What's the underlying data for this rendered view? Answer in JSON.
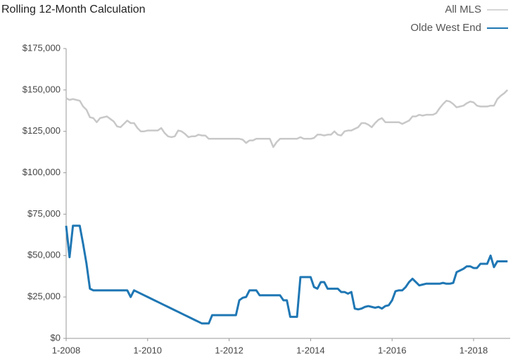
{
  "chart_data": {
    "type": "line",
    "title": "Rolling 12-Month Calculation",
    "categories": [
      "1-2008",
      null,
      null,
      null,
      null,
      null,
      null,
      null,
      null,
      null,
      null,
      null,
      null,
      null,
      null,
      null,
      null,
      null,
      null,
      null,
      null,
      null,
      null,
      null,
      "1-2010",
      null,
      null,
      null,
      null,
      null,
      null,
      null,
      null,
      null,
      null,
      null,
      null,
      null,
      null,
      null,
      null,
      null,
      null,
      null,
      null,
      null,
      null,
      null,
      "1-2012",
      null,
      null,
      null,
      null,
      null,
      null,
      null,
      null,
      null,
      null,
      null,
      null,
      null,
      null,
      null,
      null,
      null,
      null,
      null,
      null,
      null,
      null,
      null,
      "1-2014",
      null,
      null,
      null,
      null,
      null,
      null,
      null,
      null,
      null,
      null,
      null,
      null,
      null,
      null,
      null,
      null,
      null,
      null,
      null,
      null,
      null,
      null,
      null,
      "1-2016",
      null,
      null,
      null,
      null,
      null,
      null,
      null,
      null,
      null,
      null,
      null,
      null,
      null,
      null,
      null,
      null,
      null,
      null,
      null,
      null,
      null,
      null,
      null,
      "1-2018",
      null,
      null,
      null,
      null,
      null,
      null,
      null,
      null,
      null,
      null
    ],
    "series": [
      {
        "name": "All MLS",
        "color": "#c8c8c8",
        "values": [
          145000,
          144000,
          144500,
          144000,
          143500,
          140000,
          138000,
          133500,
          133000,
          130500,
          133000,
          133500,
          134000,
          132500,
          131000,
          128000,
          127500,
          129500,
          131500,
          130000,
          130000,
          127000,
          125000,
          125000,
          125500,
          125500,
          125500,
          125500,
          127000,
          124000,
          122000,
          121500,
          122000,
          125500,
          125000,
          123500,
          121500,
          122000,
          122000,
          123000,
          122500,
          122500,
          120500,
          120500,
          120500,
          120500,
          120500,
          120500,
          120500,
          120500,
          120500,
          120500,
          120000,
          118000,
          119500,
          119500,
          120500,
          120500,
          120500,
          120500,
          120500,
          115500,
          118500,
          120500,
          120500,
          120500,
          120500,
          120500,
          120500,
          121500,
          120500,
          120500,
          120500,
          121000,
          123000,
          123000,
          122500,
          123000,
          123000,
          125000,
          123000,
          122500,
          125000,
          125500,
          125500,
          126500,
          127500,
          130000,
          130000,
          129000,
          127500,
          130000,
          132000,
          133000,
          130500,
          130500,
          130500,
          130500,
          130500,
          129500,
          130500,
          131500,
          134000,
          134000,
          135000,
          134500,
          135000,
          135000,
          135000,
          136000,
          139000,
          141500,
          143500,
          143000,
          141500,
          139500,
          140000,
          140500,
          142000,
          143000,
          142500,
          140500,
          140000,
          140000,
          140000,
          140500,
          140500,
          144500,
          146500,
          148000,
          150000
        ]
      },
      {
        "name": "Olde West End",
        "color": "#1f77b4",
        "values": [
          68000,
          49000,
          68000,
          68000,
          68000,
          57000,
          45000,
          30000,
          29000,
          29000,
          29000,
          29000,
          29000,
          29000,
          29000,
          29000,
          29000,
          29000,
          29000,
          25000,
          29000,
          28000,
          27000,
          26000,
          25000,
          24000,
          23000,
          22000,
          21000,
          20000,
          19000,
          18000,
          17000,
          16000,
          15000,
          14000,
          13000,
          12000,
          11000,
          10000,
          9000,
          9000,
          9000,
          14000,
          14000,
          14000,
          14000,
          14000,
          14000,
          14000,
          14000,
          23000,
          24500,
          25000,
          29000,
          29000,
          29000,
          26000,
          26000,
          26000,
          26000,
          26000,
          26000,
          26000,
          23000,
          23000,
          13000,
          13000,
          13000,
          37000,
          37000,
          37000,
          37000,
          31000,
          30000,
          34000,
          34000,
          30000,
          30000,
          30000,
          30000,
          28000,
          28000,
          27000,
          28000,
          18000,
          17500,
          18000,
          19000,
          19500,
          19000,
          18500,
          19000,
          18000,
          19500,
          20000,
          23000,
          28500,
          29000,
          29000,
          31000,
          34000,
          36000,
          34000,
          32000,
          32500,
          33000,
          33000,
          33000,
          33000,
          33000,
          33500,
          33000,
          33000,
          33500,
          40000,
          41000,
          42000,
          43500,
          43500,
          42500,
          42500,
          45000,
          45000,
          45000,
          50000,
          43000,
          46500,
          46500,
          46500,
          46500
        ]
      }
    ],
    "ylim": [
      0,
      175000
    ],
    "yticks": [
      {
        "value": 0,
        "label": "$0"
      },
      {
        "value": 25000,
        "label": "$25,000"
      },
      {
        "value": 50000,
        "label": "$50,000"
      },
      {
        "value": 75000,
        "label": "$75,000"
      },
      {
        "value": 100000,
        "label": "$100,000"
      },
      {
        "value": 125000,
        "label": "$125,000"
      },
      {
        "value": 150000,
        "label": "$150,000"
      },
      {
        "value": 175000,
        "label": "$175,000"
      }
    ],
    "legend": "top-right"
  }
}
